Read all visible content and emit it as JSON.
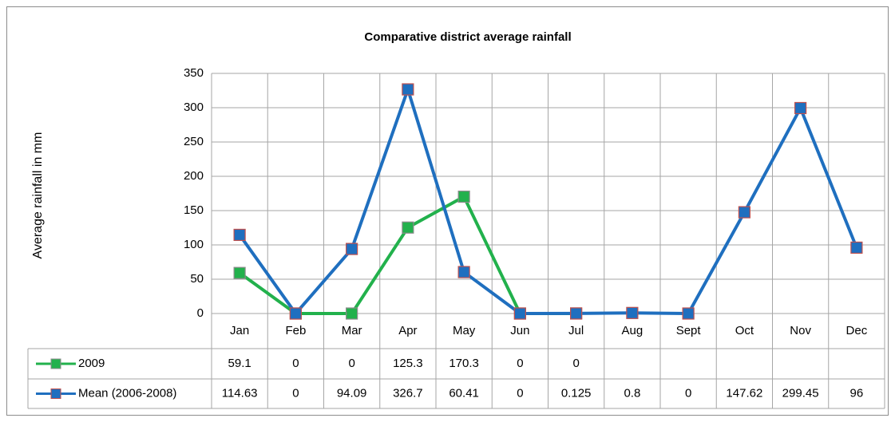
{
  "chart_data": {
    "type": "line",
    "title": "Comparative district average rainfall",
    "y_label": "Average rainfall in mm",
    "categories": [
      "Jan",
      "Feb",
      "Mar",
      "Apr",
      "May",
      "Jun",
      "Jul",
      "Aug",
      "Sept",
      "Oct",
      "Nov",
      "Dec"
    ],
    "series": [
      {
        "name": "2009",
        "color": "#22b14c",
        "marker_edge": "#8c8c8c",
        "values": [
          59.1,
          0,
          0,
          125.3,
          170.3,
          0,
          0,
          null,
          null,
          null,
          null,
          null
        ]
      },
      {
        "name": "Mean (2006-2008)",
        "color": "#1f6fbf",
        "marker_edge": "#c0504d",
        "values": [
          114.63,
          0,
          94.09,
          326.7,
          60.41,
          0,
          0.125,
          0.8,
          0,
          147.62,
          299.45,
          96
        ]
      }
    ],
    "ylim": [
      0,
      350
    ],
    "yticks": [
      0,
      50,
      100,
      150,
      200,
      250,
      300,
      350
    ],
    "grid": true,
    "data_table": true
  }
}
